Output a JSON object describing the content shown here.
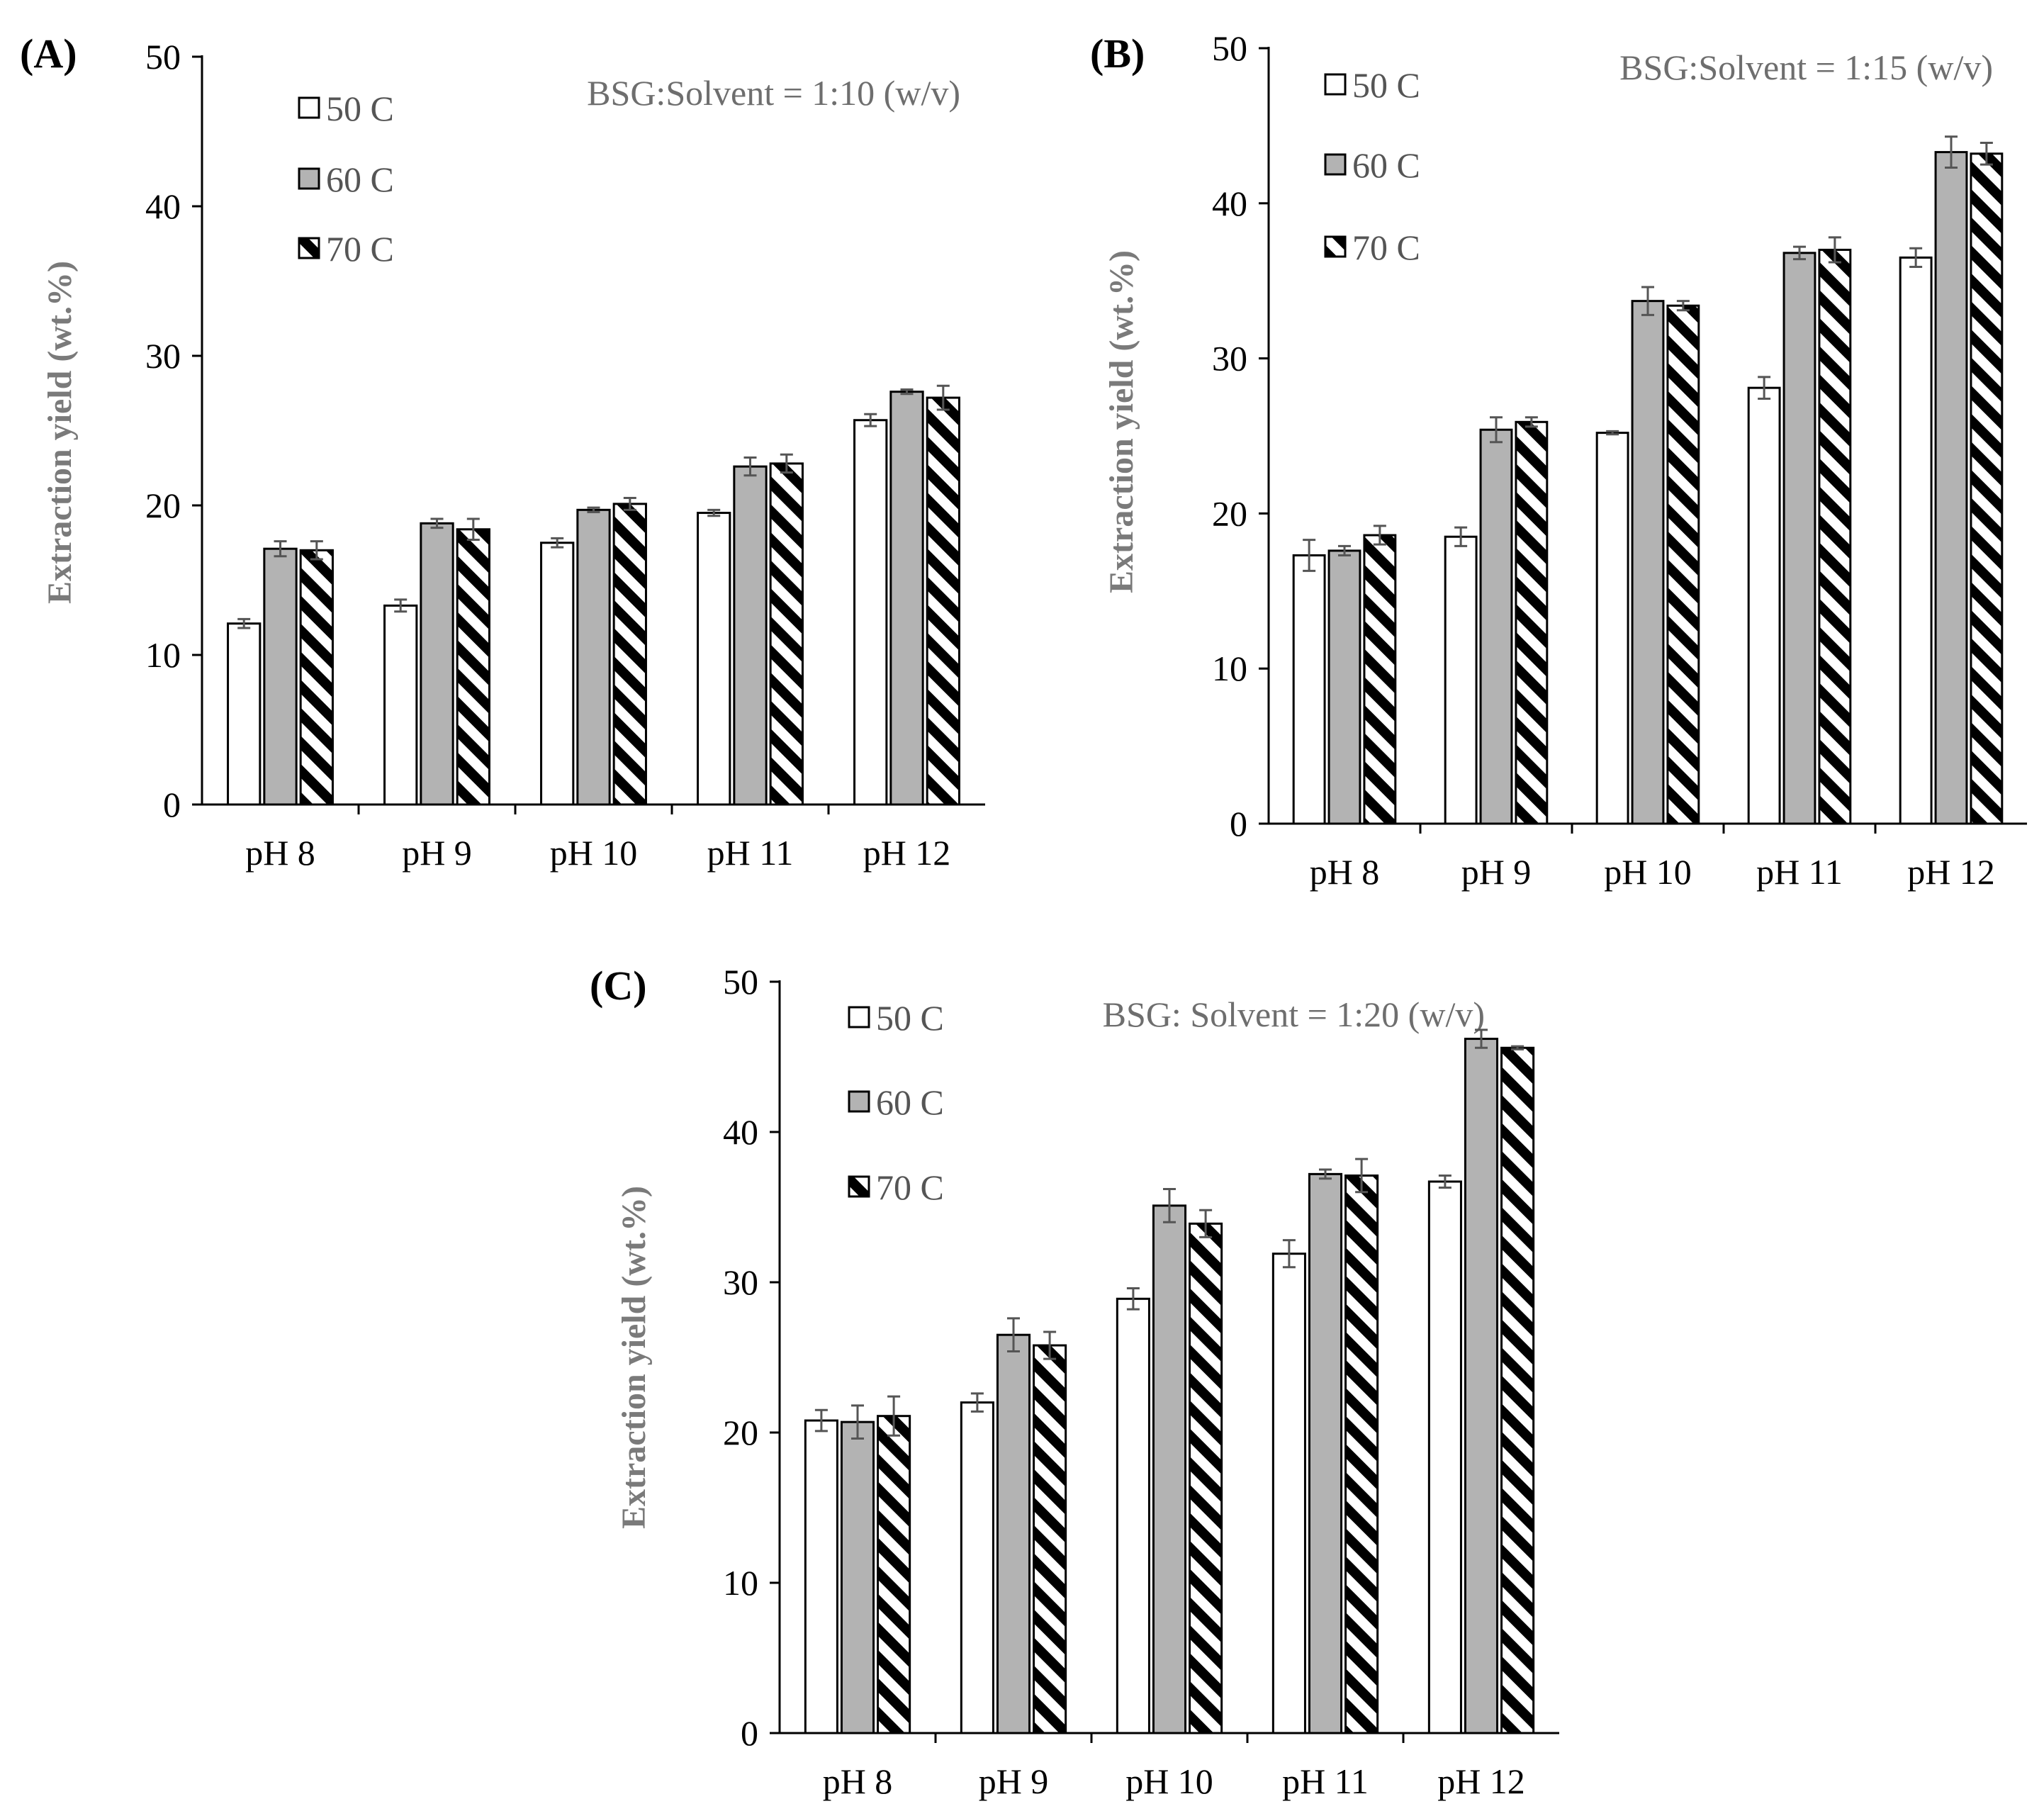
{
  "figure": {
    "series": [
      {
        "name": "50 C",
        "pattern": "white"
      },
      {
        "name": "60 C",
        "pattern": "gray"
      },
      {
        "name": "70 C",
        "pattern": "hatch"
      }
    ],
    "colors": {
      "white_fill": "#ffffff",
      "gray_fill": "#b3b3b3",
      "hatch_fill": "#000000",
      "bar_edge": "#000000",
      "error_bar": "#555555"
    }
  },
  "chart_data": [
    {
      "panel": "(A)",
      "type": "bar",
      "title": "BSG:Solvent = 1:10 (w/v)",
      "xlabel": "",
      "ylabel": "Extraction yield (wt.%)",
      "ylim": [
        0,
        50
      ],
      "yticks": [
        0,
        10,
        20,
        30,
        40,
        50
      ],
      "categories": [
        "pH 8",
        "pH 9",
        "pH 10",
        "pH 11",
        "pH 12"
      ],
      "series": [
        {
          "name": "50 C",
          "values": [
            12.1,
            13.3,
            17.5,
            19.5,
            25.7
          ],
          "errors": [
            0.3,
            0.4,
            0.3,
            0.2,
            0.4
          ]
        },
        {
          "name": "60 C",
          "values": [
            17.1,
            18.8,
            19.7,
            22.6,
            27.6
          ],
          "errors": [
            0.5,
            0.3,
            0.15,
            0.6,
            0.15
          ]
        },
        {
          "name": "70 C",
          "values": [
            17.0,
            18.4,
            20.1,
            22.8,
            27.2
          ],
          "errors": [
            0.6,
            0.7,
            0.4,
            0.6,
            0.8
          ]
        }
      ]
    },
    {
      "panel": "(B)",
      "type": "bar",
      "title": "BSG:Solvent = 1:15 (w/v)",
      "xlabel": "",
      "ylabel": "Extraction yield (wt.%)",
      "ylim": [
        0,
        50
      ],
      "yticks": [
        0,
        10,
        20,
        30,
        40,
        50
      ],
      "categories": [
        "pH 8",
        "pH 9",
        "pH 10",
        "pH 11",
        "pH 12"
      ],
      "series": [
        {
          "name": "50 C",
          "values": [
            17.3,
            18.5,
            25.2,
            28.1,
            36.5
          ],
          "errors": [
            1.0,
            0.6,
            0.1,
            0.7,
            0.6
          ]
        },
        {
          "name": "60 C",
          "values": [
            17.6,
            25.4,
            33.7,
            36.8,
            43.3
          ],
          "errors": [
            0.3,
            0.8,
            0.9,
            0.4,
            1.0
          ]
        },
        {
          "name": "70 C",
          "values": [
            18.6,
            25.9,
            33.4,
            37.0,
            43.2
          ],
          "errors": [
            0.6,
            0.3,
            0.3,
            0.8,
            0.7
          ]
        }
      ]
    },
    {
      "panel": "(C)",
      "type": "bar",
      "title": "BSG: Solvent = 1:20 (w/v)",
      "xlabel": "",
      "ylabel": "Extraction yield (wt.%)",
      "ylim": [
        0,
        50
      ],
      "yticks": [
        0,
        10,
        20,
        30,
        40,
        50
      ],
      "categories": [
        "pH 8",
        "pH 9",
        "pH 10",
        "pH 11",
        "pH 12"
      ],
      "series": [
        {
          "name": "50 C",
          "values": [
            20.8,
            22.0,
            28.9,
            31.9,
            36.7
          ],
          "errors": [
            0.7,
            0.6,
            0.7,
            0.9,
            0.4
          ]
        },
        {
          "name": "60 C",
          "values": [
            20.7,
            26.5,
            35.1,
            37.2,
            46.2
          ],
          "errors": [
            1.1,
            1.1,
            1.1,
            0.3,
            0.6
          ]
        },
        {
          "name": "70 C",
          "values": [
            21.1,
            25.8,
            33.9,
            37.1,
            45.6
          ],
          "errors": [
            1.3,
            0.9,
            0.9,
            1.1,
            0.1
          ]
        }
      ]
    }
  ]
}
